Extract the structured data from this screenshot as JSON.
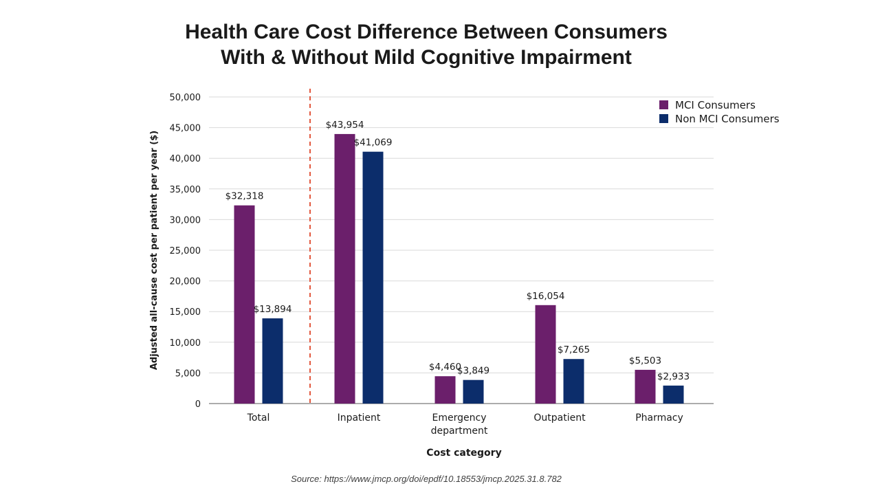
{
  "title_lines": [
    "Health Care Cost Difference Between Consumers",
    "With & Without Mild Cognitive Impairment"
  ],
  "source": "Source: https://www.jmcp.org/doi/epdf/10.18553/jmcp.2025.31.8.782",
  "colors": {
    "mci": "#6b1f6b",
    "non_mci": "#0c2d6b",
    "divider": "#e2583e",
    "grid": "#d9d9d9",
    "axis": "#595959",
    "text": "#1a1a1a"
  },
  "chart_data": {
    "type": "bar",
    "title": "Health Care Cost Difference Between Consumers With & Without Mild Cognitive Impairment",
    "xlabel": "Cost category",
    "ylabel": "Adjusted all-cause cost per patient per year ($)",
    "ylim": [
      0,
      50000
    ],
    "yticks": [
      0,
      5000,
      10000,
      15000,
      20000,
      25000,
      30000,
      35000,
      40000,
      45000,
      50000
    ],
    "ytick_labels": [
      "0",
      "5,000",
      "10,000",
      "15,000",
      "20,000",
      "25,000",
      "30,000",
      "35,000",
      "40,000",
      "45,000",
      "50,000"
    ],
    "categories": [
      "Total",
      "Inpatient",
      "Emergency department",
      "Outpatient",
      "Pharmacy"
    ],
    "category_lines": [
      [
        "Total"
      ],
      [
        "Inpatient"
      ],
      [
        "Emergency",
        "department"
      ],
      [
        "Outpatient"
      ],
      [
        "Pharmacy"
      ]
    ],
    "series": [
      {
        "name": "MCI Consumers",
        "values": [
          32318,
          43954,
          4460,
          16054,
          5503
        ],
        "labels": [
          "$32,318",
          "$43,954",
          "$4,460",
          "$16,054",
          "$5,503"
        ]
      },
      {
        "name": "Non MCI Consumers",
        "values": [
          13894,
          41069,
          3849,
          7265,
          2933
        ],
        "labels": [
          "$13,894",
          "$41,069",
          "$3,849",
          "$7,265",
          "$2,933"
        ]
      }
    ],
    "grid": true,
    "legend": "top-right",
    "divider_after_category": "Total"
  }
}
